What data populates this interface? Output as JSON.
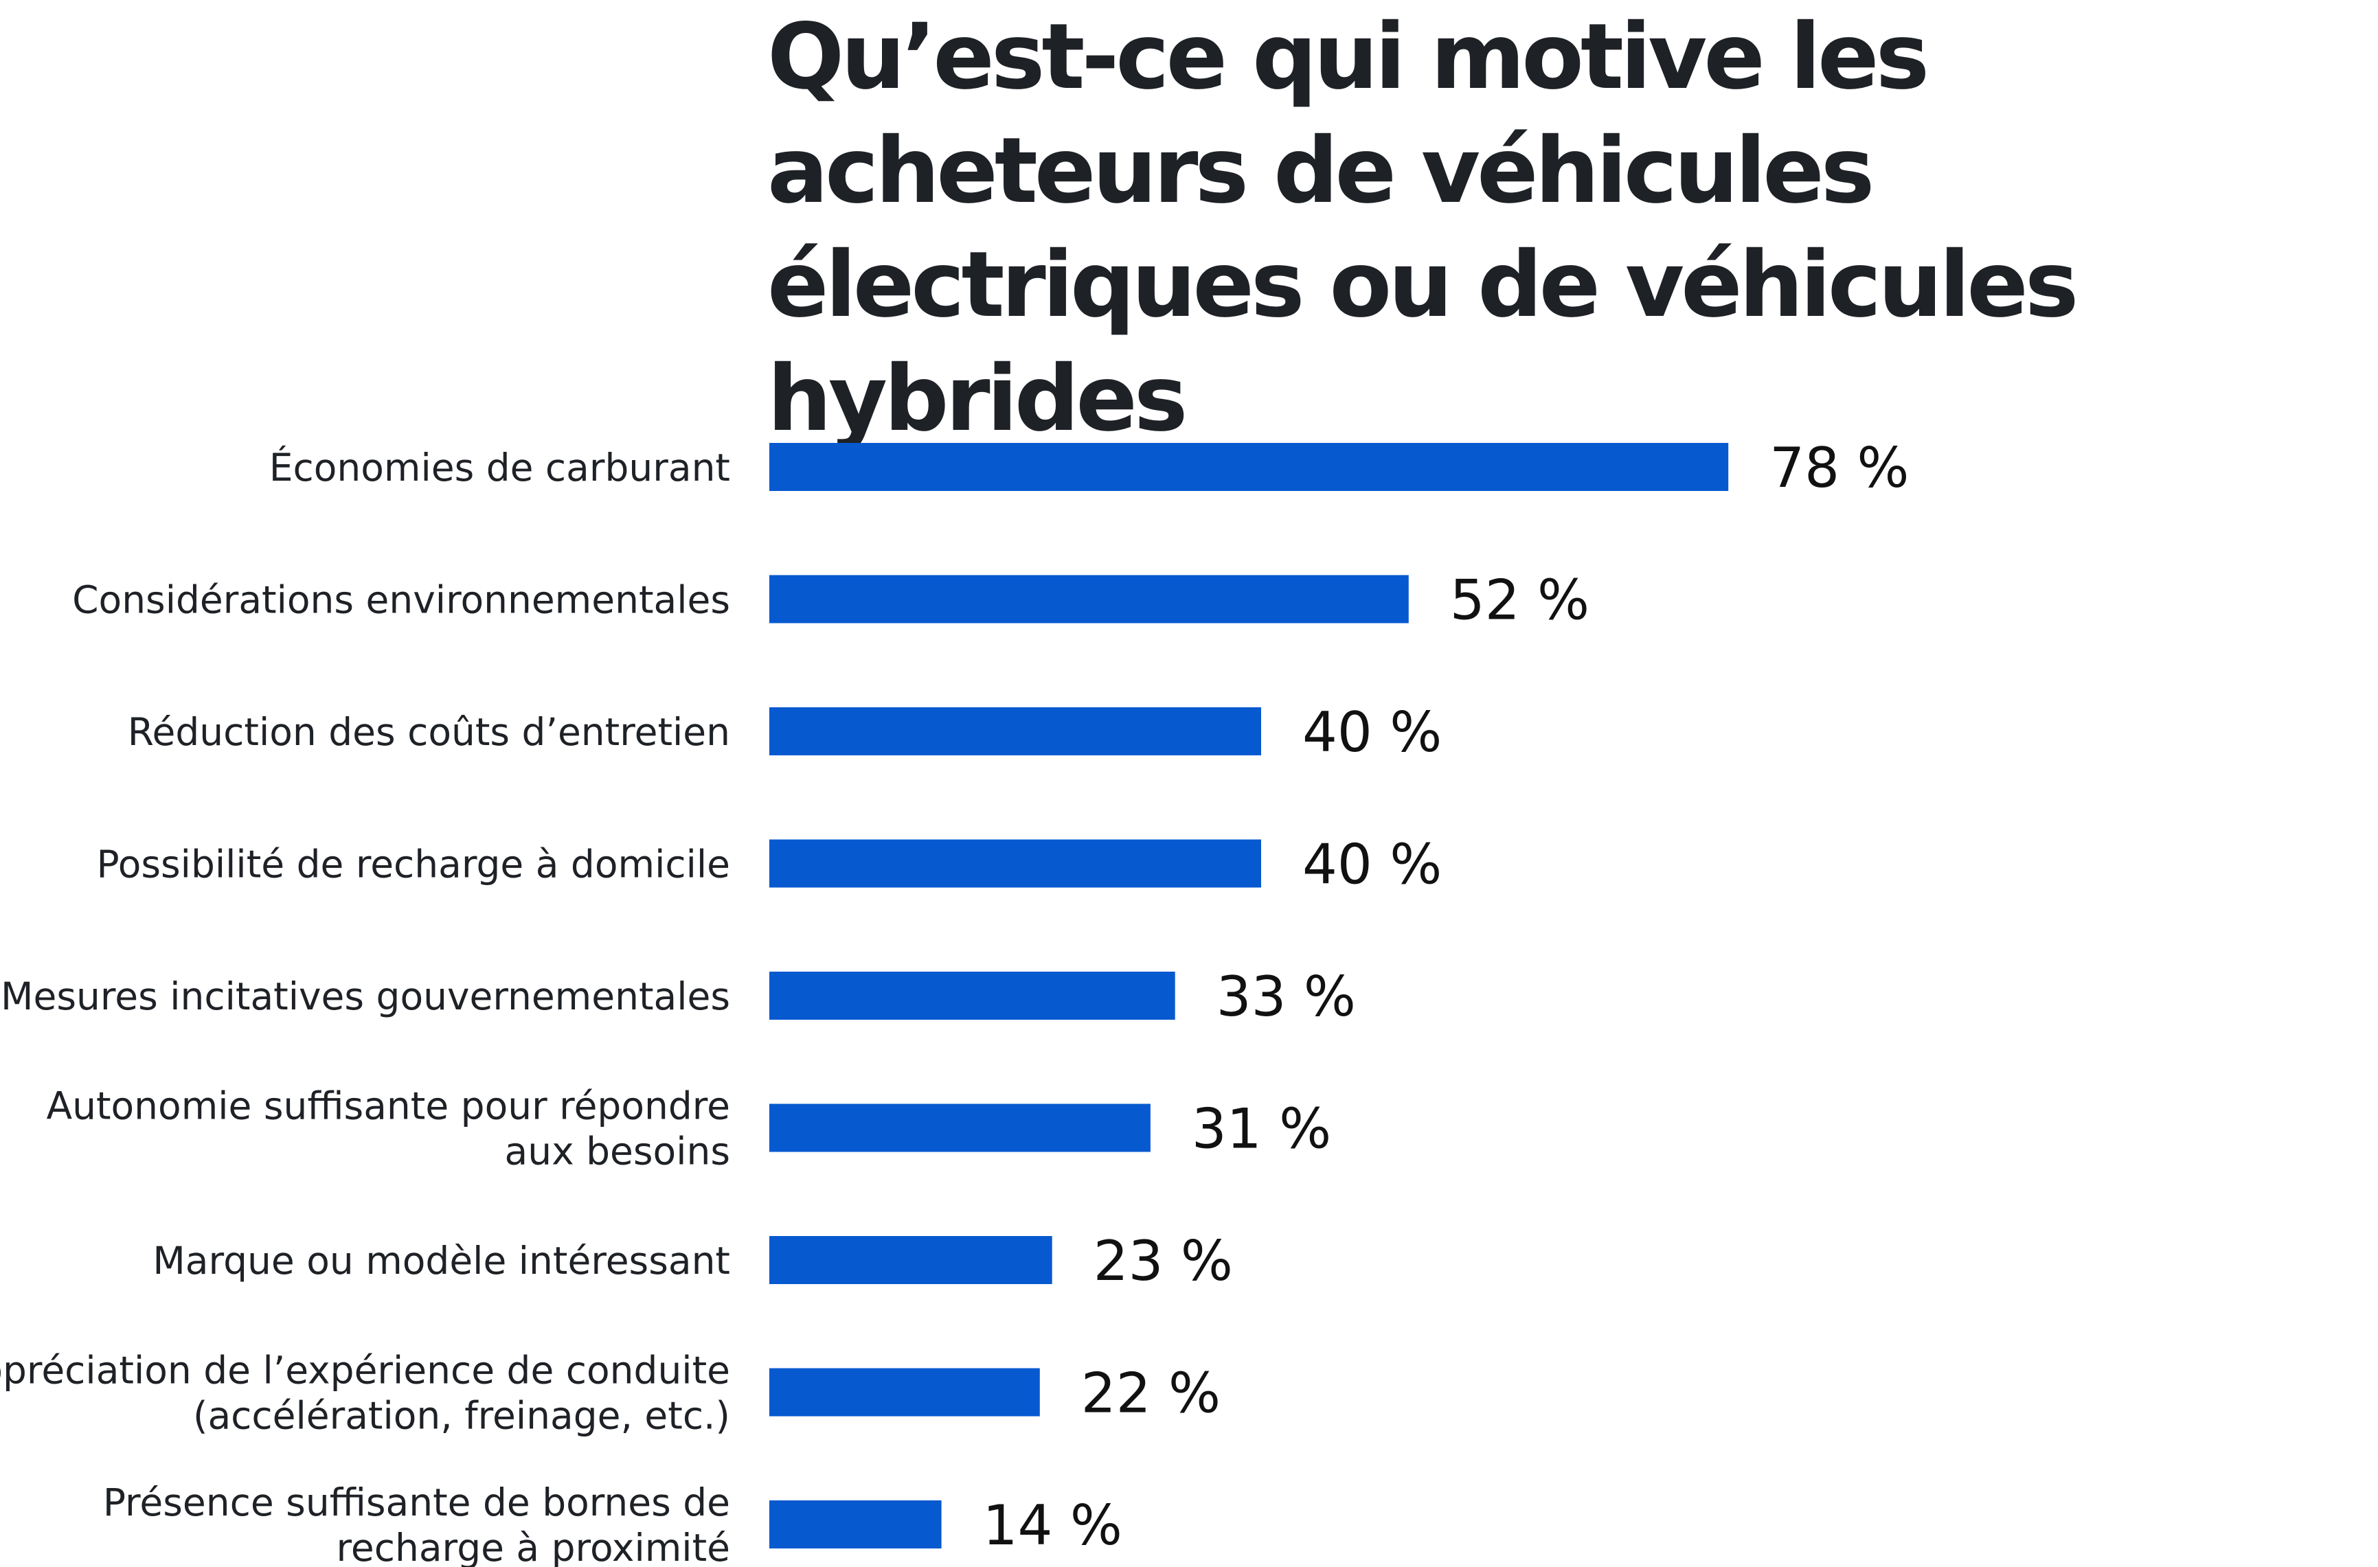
{
  "chart_data": {
    "type": "bar",
    "orientation": "horizontal",
    "title": "Qu’est-ce qui motive les acheteurs de véhicules électriques ou de véhicules hybrides",
    "categories": [
      [
        "Économies de carburant"
      ],
      [
        "Considérations environnementales"
      ],
      [
        "Réduction des coûts d’entretien"
      ],
      [
        "Possibilité de recharge à domicile"
      ],
      [
        "Mesures incitatives gouvernementales"
      ],
      [
        "Autonomie suffisante pour répondre",
        "aux besoins"
      ],
      [
        "Marque ou modèle intéressant"
      ],
      [
        "Appréciation de l’expérience de conduite",
        "(accélération, freinage, etc.)"
      ],
      [
        "Présence suffisante de bornes de",
        "recharge à proximité"
      ]
    ],
    "values": [
      78,
      52,
      40,
      40,
      33,
      31,
      23,
      22,
      14
    ],
    "value_labels": [
      "78 %",
      "52 %",
      "40 %",
      "40 %",
      "33 %",
      "31 %",
      "23 %",
      "22 %",
      "14 %"
    ],
    "unit": "%",
    "bar_color": "#0759d0",
    "grid": false,
    "legend": "none"
  }
}
